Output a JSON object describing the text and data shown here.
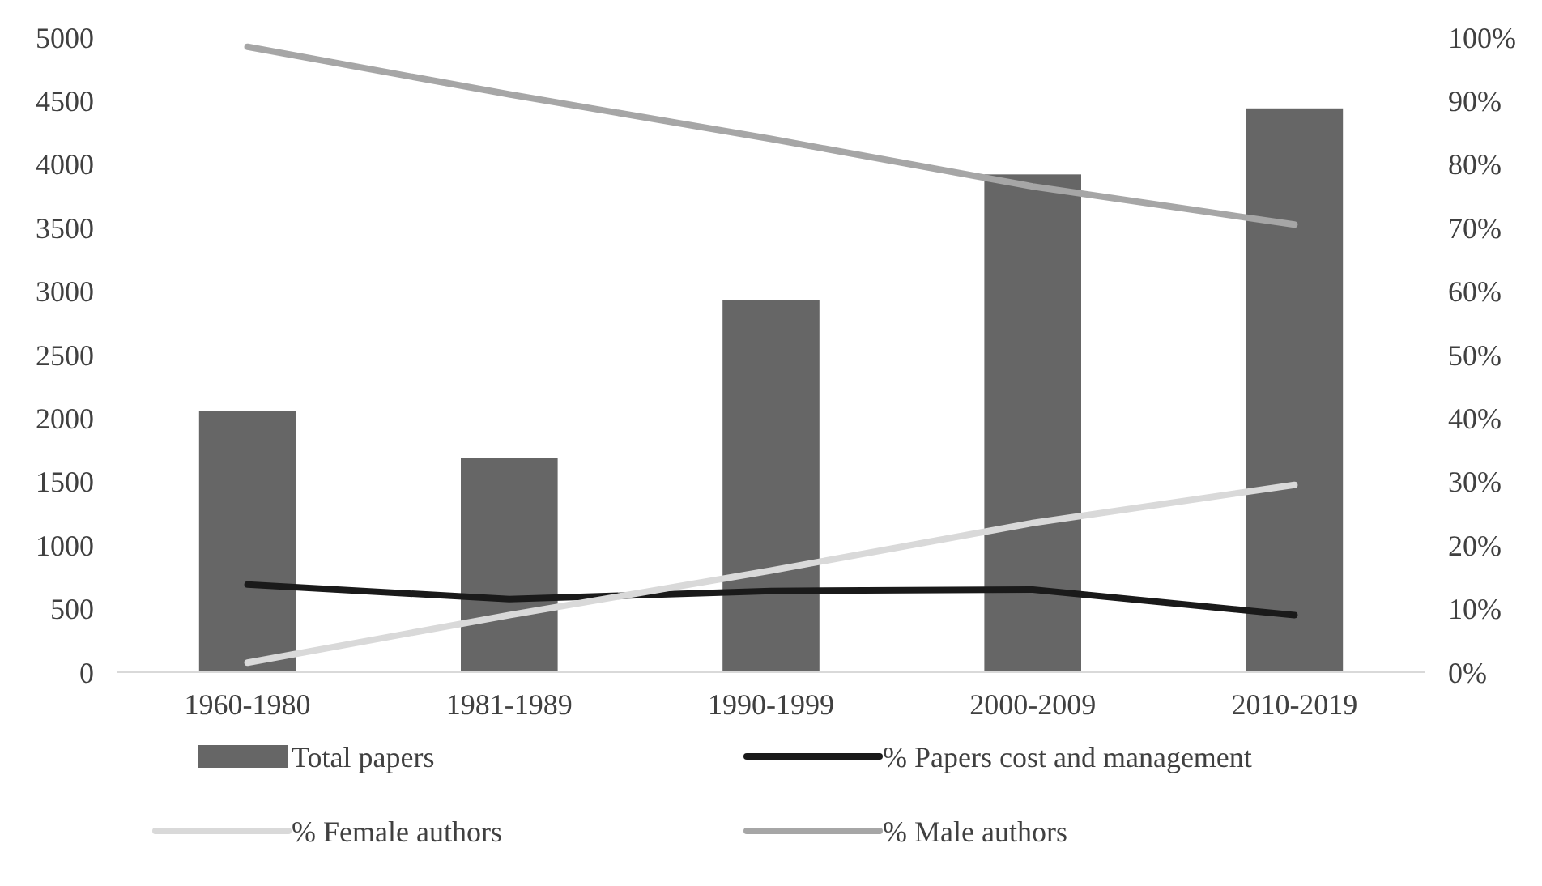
{
  "chart_data": {
    "type": "bar",
    "categories": [
      "1960-1980",
      "1981-1989",
      "1990-1999",
      "2000-2009",
      "2010-2019"
    ],
    "series": [
      {
        "name": "Total papers",
        "color": "#666666",
        "values": [
          2060,
          1690,
          2930,
          3920,
          4440
        ]
      },
      {
        "name": "% Papers cost and management",
        "type": "line",
        "axis": "y2",
        "color": "#1a1a1a",
        "values": [
          13.8,
          11.5,
          12.8,
          13,
          9
        ]
      },
      {
        "name": "% Female authors",
        "type": "line",
        "axis": "y2",
        "color": "#d9d9d9",
        "values": [
          1.5,
          9,
          16,
          23.5,
          29.5
        ]
      },
      {
        "name": "% Male authors",
        "type": "line",
        "axis": "y2",
        "color": "#a6a6a6",
        "values": [
          98.5,
          91,
          84,
          76.5,
          70.5
        ]
      }
    ],
    "ylim": [
      0,
      5000
    ],
    "yticks": [
      0,
      500,
      1000,
      1500,
      2000,
      2500,
      3000,
      3500,
      4000,
      4500,
      5000
    ],
    "y2lim": [
      0,
      100
    ],
    "y2ticks": [
      {
        "value": 0,
        "label": "0%"
      },
      {
        "value": 10,
        "label": "10%"
      },
      {
        "value": 20,
        "label": "20%"
      },
      {
        "value": 30,
        "label": "30%"
      },
      {
        "value": 40,
        "label": "40%"
      },
      {
        "value": 50,
        "label": "50%"
      },
      {
        "value": 60,
        "label": "60%"
      },
      {
        "value": 70,
        "label": "70%"
      },
      {
        "value": 80,
        "label": "80%"
      },
      {
        "value": 90,
        "label": "90%"
      },
      {
        "value": 100,
        "label": "100%"
      }
    ],
    "legend": "bottom",
    "marker": "none",
    "line_style": "solid",
    "grid": false
  }
}
